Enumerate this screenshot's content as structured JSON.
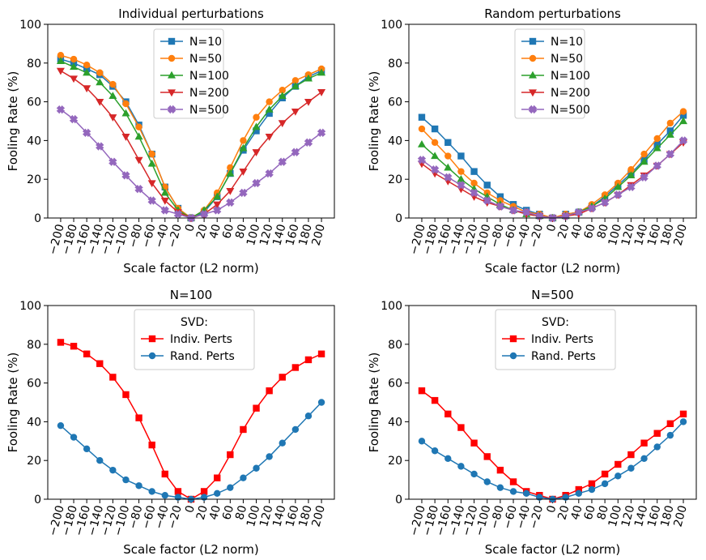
{
  "chart_data": [
    {
      "type": "line",
      "title": "Individual perturbations",
      "xlabel": "Scale factor (L2 norm)",
      "ylabel": "Fooling Rate (%)",
      "ylim": [
        0,
        100
      ],
      "yticks": [
        0,
        20,
        40,
        60,
        80,
        100
      ],
      "x": [
        -200,
        -180,
        -160,
        -140,
        -120,
        -100,
        -80,
        -60,
        -40,
        -20,
        0,
        20,
        40,
        60,
        80,
        100,
        120,
        140,
        160,
        180,
        200
      ],
      "xticklabels": [
        "−200",
        "−180",
        "−160",
        "−140",
        "−120",
        "−100",
        "−80",
        "−60",
        "−40",
        "−20",
        "0",
        "20",
        "40",
        "60",
        "80",
        "100",
        "120",
        "140",
        "160",
        "180",
        "200"
      ],
      "legend_title": "",
      "legend_position": "upper center",
      "series": [
        {
          "name": "N=10",
          "color": "#1f77b4",
          "marker": "square",
          "values": [
            82,
            80,
            77,
            74,
            68,
            60,
            48,
            33,
            16,
            5,
            0,
            3,
            11,
            23,
            35,
            45,
            54,
            62,
            68,
            73,
            76
          ]
        },
        {
          "name": "N=50",
          "color": "#ff7f0e",
          "marker": "circle",
          "values": [
            84,
            82,
            79,
            75,
            69,
            59,
            47,
            33,
            16,
            5,
            0,
            4,
            13,
            26,
            40,
            52,
            60,
            66,
            71,
            74,
            77
          ]
        },
        {
          "name": "N=100",
          "color": "#2ca02c",
          "marker": "triangle-up",
          "values": [
            81,
            78,
            75,
            70,
            63,
            54,
            42,
            28,
            13,
            4,
            0,
            4,
            11,
            23,
            36,
            47,
            56,
            63,
            68,
            72,
            75
          ]
        },
        {
          "name": "N=200",
          "color": "#d62728",
          "marker": "triangle-down",
          "values": [
            76,
            72,
            67,
            60,
            52,
            42,
            30,
            18,
            9,
            3,
            0,
            2,
            7,
            14,
            24,
            34,
            42,
            49,
            55,
            60,
            65
          ]
        },
        {
          "name": "N=500",
          "color": "#9467bd",
          "marker": "x",
          "values": [
            56,
            51,
            44,
            37,
            29,
            22,
            15,
            9,
            4,
            2,
            0,
            2,
            4,
            8,
            13,
            18,
            23,
            29,
            34,
            39,
            44
          ]
        }
      ]
    },
    {
      "type": "line",
      "title": "Random perturbations",
      "xlabel": "Scale factor (L2 norm)",
      "ylabel": "Fooling Rate (%)",
      "ylim": [
        0,
        100
      ],
      "yticks": [
        0,
        20,
        40,
        60,
        80,
        100
      ],
      "x": [
        -200,
        -180,
        -160,
        -140,
        -120,
        -100,
        -80,
        -60,
        -40,
        -20,
        0,
        20,
        40,
        60,
        80,
        100,
        120,
        140,
        160,
        180,
        200
      ],
      "xticklabels": [
        "−200",
        "−180",
        "−160",
        "−140",
        "−120",
        "−100",
        "−80",
        "−60",
        "−40",
        "−20",
        "0",
        "20",
        "40",
        "60",
        "80",
        "100",
        "120",
        "140",
        "160",
        "180",
        "200"
      ],
      "legend_title": "",
      "legend_position": "upper center",
      "series": [
        {
          "name": "N=10",
          "color": "#1f77b4",
          "marker": "square",
          "values": [
            52,
            46,
            39,
            32,
            24,
            17,
            11,
            7,
            4,
            2,
            0,
            2,
            3,
            6,
            11,
            17,
            23,
            30,
            38,
            45,
            53
          ]
        },
        {
          "name": "N=50",
          "color": "#ff7f0e",
          "marker": "circle",
          "values": [
            46,
            39,
            32,
            24,
            18,
            13,
            9,
            6,
            3,
            2,
            0,
            2,
            3,
            7,
            12,
            18,
            25,
            33,
            41,
            49,
            55
          ]
        },
        {
          "name": "N=100",
          "color": "#2ca02c",
          "marker": "triangle-up",
          "values": [
            38,
            32,
            26,
            20,
            15,
            11,
            7,
            4,
            2,
            1,
            0,
            1,
            3,
            6,
            10,
            16,
            22,
            29,
            36,
            43,
            50
          ]
        },
        {
          "name": "N=200",
          "color": "#d62728",
          "marker": "triangle-down",
          "values": [
            28,
            23,
            19,
            15,
            11,
            8,
            6,
            4,
            2,
            1,
            0,
            1,
            2,
            5,
            8,
            12,
            17,
            22,
            27,
            33,
            39
          ]
        },
        {
          "name": "N=500",
          "color": "#9467bd",
          "marker": "x",
          "values": [
            30,
            25,
            21,
            17,
            13,
            9,
            6,
            4,
            3,
            1,
            0,
            1,
            3,
            5,
            8,
            12,
            16,
            21,
            27,
            33,
            40
          ]
        }
      ]
    },
    {
      "type": "line",
      "title": "N=100",
      "xlabel": "Scale factor (L2 norm)",
      "ylabel": "Fooling Rate (%)",
      "ylim": [
        0,
        100
      ],
      "yticks": [
        0,
        20,
        40,
        60,
        80,
        100
      ],
      "x": [
        -200,
        -180,
        -160,
        -140,
        -120,
        -100,
        -80,
        -60,
        -40,
        -20,
        0,
        20,
        40,
        60,
        80,
        100,
        120,
        140,
        160,
        180,
        200
      ],
      "xticklabels": [
        "−200",
        "−180",
        "−160",
        "−140",
        "−120",
        "−100",
        "−80",
        "−60",
        "−40",
        "−20",
        "0",
        "20",
        "40",
        "60",
        "80",
        "100",
        "120",
        "140",
        "160",
        "180",
        "200"
      ],
      "legend_title": "SVD:",
      "legend_position": "upper center",
      "series": [
        {
          "name": "Indiv. Perts",
          "color": "#ff0000",
          "marker": "square",
          "values": [
            81,
            79,
            75,
            70,
            63,
            54,
            42,
            28,
            13,
            4,
            0,
            4,
            11,
            23,
            36,
            47,
            56,
            63,
            68,
            72,
            75
          ]
        },
        {
          "name": "Rand. Perts",
          "color": "#1f77b4",
          "marker": "circle",
          "values": [
            38,
            32,
            26,
            20,
            15,
            10,
            7,
            4,
            2,
            1,
            0,
            1,
            3,
            6,
            11,
            16,
            22,
            29,
            36,
            43,
            50
          ]
        }
      ]
    },
    {
      "type": "line",
      "title": "N=500",
      "xlabel": "Scale factor (L2 norm)",
      "ylabel": "Fooling Rate (%)",
      "ylim": [
        0,
        100
      ],
      "yticks": [
        0,
        20,
        40,
        60,
        80,
        100
      ],
      "x": [
        -200,
        -180,
        -160,
        -140,
        -120,
        -100,
        -80,
        -60,
        -40,
        -20,
        0,
        20,
        40,
        60,
        80,
        100,
        120,
        140,
        160,
        180,
        200
      ],
      "xticklabels": [
        "−200",
        "−180",
        "−160",
        "−140",
        "−120",
        "−100",
        "−80",
        "−60",
        "−40",
        "−20",
        "0",
        "20",
        "40",
        "60",
        "80",
        "100",
        "120",
        "140",
        "160",
        "180",
        "200"
      ],
      "legend_title": "SVD:",
      "legend_position": "upper center",
      "series": [
        {
          "name": "Indiv. Perts",
          "color": "#ff0000",
          "marker": "square",
          "values": [
            56,
            51,
            44,
            37,
            29,
            22,
            15,
            9,
            4,
            2,
            0,
            2,
            5,
            8,
            13,
            18,
            23,
            29,
            34,
            39,
            44
          ]
        },
        {
          "name": "Rand. Perts",
          "color": "#1f77b4",
          "marker": "circle",
          "values": [
            30,
            25,
            21,
            17,
            13,
            9,
            6,
            4,
            3,
            1,
            0,
            1,
            3,
            5,
            8,
            12,
            16,
            21,
            27,
            33,
            40
          ]
        }
      ]
    }
  ]
}
